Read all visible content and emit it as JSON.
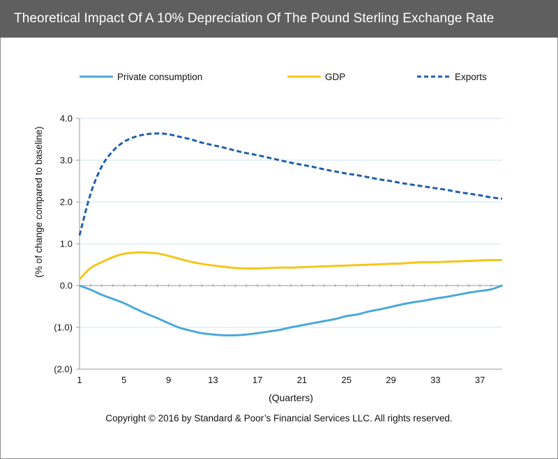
{
  "chart_data": {
    "type": "line",
    "title": "Theoretical Impact Of A 10%  Depreciation Of The Pound Sterling Exchange Rate",
    "xlabel": "(Quarters)",
    "ylabel": "(% of change compared to baseline)",
    "xlim": [
      1,
      39
    ],
    "ylim": [
      -2,
      4
    ],
    "x_ticks": [
      1,
      5,
      9,
      13,
      17,
      21,
      25,
      29,
      33,
      37
    ],
    "x_tick_labels": [
      "1",
      "5",
      "9",
      "13",
      "17",
      "21",
      "25",
      "29",
      "33",
      "37"
    ],
    "y_ticks": [
      -2,
      -1,
      0,
      1,
      2,
      3,
      4
    ],
    "y_tick_labels": [
      "(2.0)",
      "(1.0)",
      "0.0",
      "1.0",
      "2.0",
      "3.0",
      "4.0"
    ],
    "grid": true,
    "legend_position": "top",
    "x": [
      1,
      2,
      3,
      4,
      5,
      6,
      7,
      8,
      9,
      10,
      11,
      12,
      13,
      14,
      15,
      16,
      17,
      18,
      19,
      20,
      21,
      22,
      23,
      24,
      25,
      26,
      27,
      28,
      29,
      30,
      31,
      32,
      33,
      34,
      35,
      36,
      37,
      38,
      39
    ],
    "series": [
      {
        "name": "Private consumption",
        "color": "#4aa8d8",
        "style": "solid",
        "values": [
          0,
          -0.1,
          -0.22,
          -0.32,
          -0.42,
          -0.55,
          -0.67,
          -0.78,
          -0.9,
          -1.01,
          -1.08,
          -1.14,
          -1.17,
          -1.19,
          -1.19,
          -1.17,
          -1.14,
          -1.1,
          -1.06,
          -1.0,
          -0.95,
          -0.9,
          -0.85,
          -0.8,
          -0.73,
          -0.69,
          -0.62,
          -0.57,
          -0.51,
          -0.45,
          -0.4,
          -0.36,
          -0.31,
          -0.27,
          -0.22,
          -0.17,
          -0.13,
          -0.09,
          0
        ]
      },
      {
        "name": "GDP",
        "color": "#f5c518",
        "style": "solid",
        "values": [
          0.15,
          0.42,
          0.56,
          0.68,
          0.76,
          0.79,
          0.79,
          0.77,
          0.71,
          0.64,
          0.57,
          0.52,
          0.48,
          0.45,
          0.42,
          0.41,
          0.41,
          0.42,
          0.43,
          0.43,
          0.44,
          0.45,
          0.46,
          0.47,
          0.48,
          0.49,
          0.5,
          0.51,
          0.52,
          0.53,
          0.55,
          0.56,
          0.56,
          0.57,
          0.58,
          0.59,
          0.6,
          0.61,
          0.61
        ]
      },
      {
        "name": "Exports",
        "color": "#1f5fad",
        "style": "dashed",
        "values": [
          1.2,
          2.2,
          2.85,
          3.22,
          3.44,
          3.56,
          3.62,
          3.64,
          3.62,
          3.56,
          3.5,
          3.42,
          3.36,
          3.3,
          3.23,
          3.17,
          3.12,
          3.06,
          3.0,
          2.94,
          2.89,
          2.84,
          2.78,
          2.73,
          2.68,
          2.64,
          2.59,
          2.54,
          2.5,
          2.45,
          2.41,
          2.37,
          2.33,
          2.29,
          2.24,
          2.2,
          2.16,
          2.11,
          2.08
        ]
      }
    ]
  },
  "copyright": "Copyright © 2016 by Standard & Poor’s Financial Services LLC. All rights reserved."
}
